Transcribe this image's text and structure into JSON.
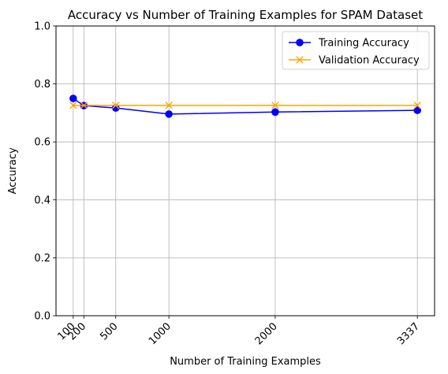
{
  "chart_data": {
    "type": "line",
    "title": "Accuracy vs Number of Training Examples for SPAM Dataset",
    "xlabel": "Number of Training Examples",
    "ylabel": "Accuracy",
    "x": [
      100,
      200,
      500,
      1000,
      2000,
      3337
    ],
    "x_tick_labels": [
      "100",
      "200",
      "500",
      "1000",
      "2000",
      "3337"
    ],
    "y_ticks": [
      0.0,
      0.2,
      0.4,
      0.6,
      0.8,
      1.0
    ],
    "y_tick_labels": [
      "0.0",
      "0.2",
      "0.4",
      "0.6",
      "0.8",
      "1.0"
    ],
    "ylim": [
      0,
      1
    ],
    "xlim": [
      -61.85,
      3498.85
    ],
    "grid": true,
    "legend_position": "top-right",
    "series": [
      {
        "name": "Training Accuracy",
        "values": [
          0.75,
          0.725,
          0.717,
          0.696,
          0.703,
          0.709
        ],
        "color": "#0000ff",
        "marker": "circle"
      },
      {
        "name": "Validation Accuracy",
        "values": [
          0.726,
          0.726,
          0.726,
          0.726,
          0.726,
          0.726
        ],
        "color": "#ffa500",
        "marker": "x"
      }
    ]
  }
}
